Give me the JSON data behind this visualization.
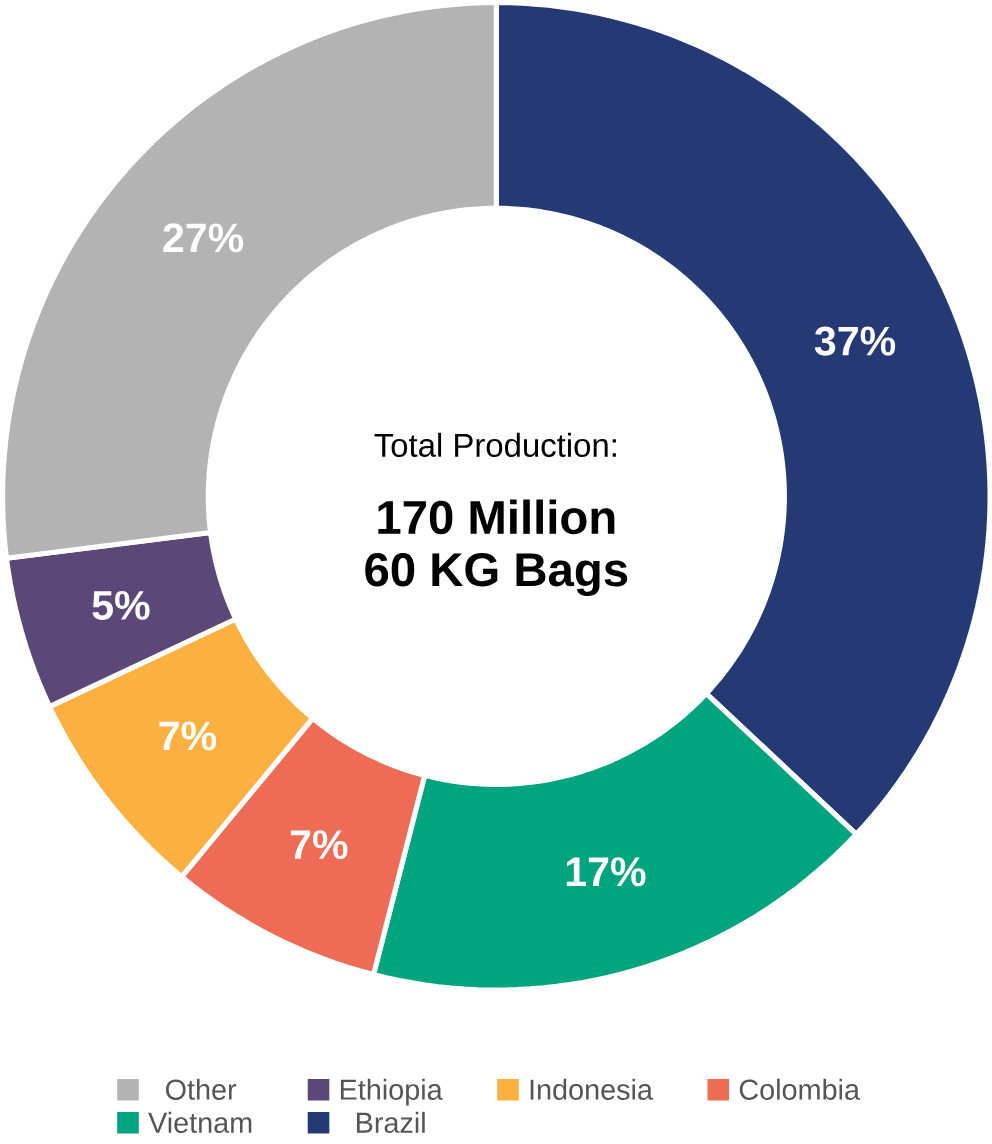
{
  "chart_data": {
    "type": "donut",
    "categories": [
      "Brazil",
      "Vietnam",
      "Colombia",
      "Indonesia",
      "Ethiopia",
      "Other"
    ],
    "values": [
      37,
      17,
      7,
      7,
      5,
      27
    ],
    "value_labels": [
      "37%",
      "17%",
      "7%",
      "7%",
      "5%",
      "27%"
    ],
    "colors": [
      "#253a74",
      "#00a47e",
      "#ee6b55",
      "#fbb040",
      "#5c4878",
      "#b3b3b3"
    ],
    "legend": "bottom",
    "annotations": [
      "Total Production:",
      "170 Million",
      "60 KG Bags"
    ]
  }
}
